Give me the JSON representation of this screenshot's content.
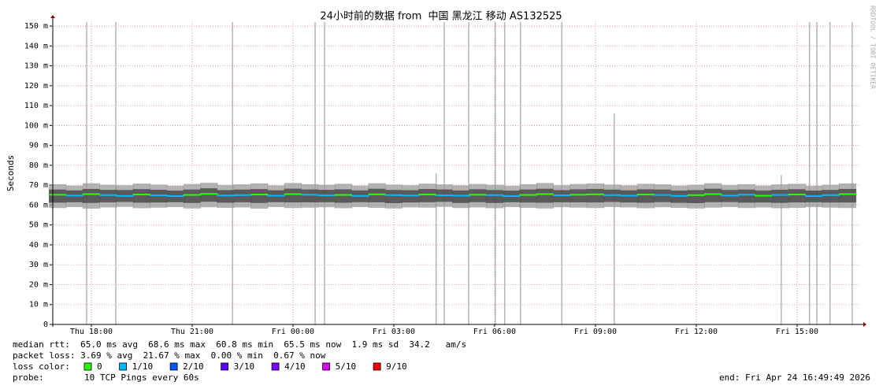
{
  "chart_data": {
    "type": "smokeping",
    "title": "24小时前的数据 from  中国 黑龙江 移动 AS132525",
    "y_label": "Seconds",
    "watermark": "RRDTOOL / TOBI OETIKER",
    "xlim": [
      16.83,
      40.83
    ],
    "xticks": [
      {
        "value": 18,
        "label": "Thu 18:00"
      },
      {
        "value": 21,
        "label": "Thu 21:00"
      },
      {
        "value": 24,
        "label": "Fri 00:00"
      },
      {
        "value": 27,
        "label": "Fri 03:00"
      },
      {
        "value": 30,
        "label": "Fri 06:00"
      },
      {
        "value": 33,
        "label": "Fri 09:00"
      },
      {
        "value": 36,
        "label": "Fri 12:00"
      },
      {
        "value": 39,
        "label": "Fri 15:00"
      }
    ],
    "ylim": [
      0,
      0.1524
    ],
    "yticks": [
      0,
      {
        "value": 0.01,
        "label": "10 m"
      },
      {
        "value": 0.02,
        "label": "20 m"
      },
      {
        "value": 0.03,
        "label": "30 m"
      },
      {
        "value": 0.04,
        "label": "40 m"
      },
      {
        "value": 0.05,
        "label": "50 m"
      },
      {
        "value": 0.06,
        "label": "60 m"
      },
      {
        "value": 0.07,
        "label": "70 m"
      },
      {
        "value": 0.08,
        "label": "80 m"
      },
      {
        "value": 0.09,
        "label": "90 m"
      },
      {
        "value": 0.1,
        "label": "100 m"
      },
      {
        "value": 0.11,
        "label": "110 m"
      },
      {
        "value": 0.12,
        "label": "120 m"
      },
      {
        "value": 0.13,
        "label": "130 m"
      },
      {
        "value": 0.14,
        "label": "140 m"
      },
      {
        "value": 0.15,
        "label": "150 m"
      }
    ],
    "grid": true,
    "x": [
      17.0,
      17.5,
      18.0,
      18.5,
      19.0,
      19.5,
      20.0,
      20.5,
      21.0,
      21.5,
      22.0,
      22.5,
      23.0,
      23.5,
      24.0,
      24.5,
      25.0,
      25.5,
      26.0,
      26.5,
      27.0,
      27.5,
      28.0,
      28.5,
      29.0,
      29.5,
      30.0,
      30.5,
      31.0,
      31.5,
      32.0,
      32.5,
      33.0,
      33.5,
      34.0,
      34.5,
      35.0,
      35.5,
      36.0,
      36.5,
      37.0,
      37.5,
      38.0,
      38.5,
      39.0,
      39.5,
      40.0,
      40.5
    ],
    "median": [
      0.0652,
      0.0648,
      0.0655,
      0.065,
      0.0646,
      0.0653,
      0.0649,
      0.0645,
      0.0651,
      0.0656,
      0.0648,
      0.065,
      0.0653,
      0.0647,
      0.0655,
      0.0652,
      0.0649,
      0.0651,
      0.0646,
      0.0654,
      0.065,
      0.0648,
      0.0653,
      0.0649,
      0.0647,
      0.0652,
      0.065,
      0.0645,
      0.0651,
      0.0655,
      0.0649,
      0.0652,
      0.0654,
      0.065,
      0.0647,
      0.0653,
      0.0651,
      0.0646,
      0.065,
      0.0655,
      0.0648,
      0.0652,
      0.0647,
      0.0651,
      0.0653,
      0.0645,
      0.065,
      0.0655
    ],
    "loss": [
      0,
      1,
      0,
      1,
      1,
      0,
      1,
      1,
      0,
      0,
      1,
      1,
      0,
      1,
      0,
      1,
      1,
      0,
      1,
      0,
      1,
      1,
      0,
      1,
      1,
      0,
      1,
      1,
      0,
      0,
      1,
      0,
      0,
      1,
      1,
      0,
      1,
      1,
      0,
      0,
      1,
      1,
      0,
      1,
      0,
      1,
      1,
      0
    ],
    "smoke_min": [
      0.0585,
      0.059,
      0.0582,
      0.0588,
      0.0591,
      0.0584,
      0.0587,
      0.059,
      0.0583,
      0.0589,
      0.0586,
      0.0588,
      0.0582,
      0.059,
      0.0585,
      0.0587,
      0.0589,
      0.0584,
      0.059,
      0.0586,
      0.0583,
      0.0588,
      0.0587,
      0.0591,
      0.0585,
      0.0588,
      0.0584,
      0.059,
      0.0586,
      0.0583,
      0.0589,
      0.0587,
      0.0585,
      0.059,
      0.0588,
      0.0584,
      0.0589,
      0.0586,
      0.0583,
      0.0587,
      0.059,
      0.0585,
      0.0588,
      0.0584,
      0.0586,
      0.059,
      0.0587,
      0.0585
    ],
    "smoke_max": [
      0.0705,
      0.0698,
      0.071,
      0.0702,
      0.07,
      0.0708,
      0.0703,
      0.0697,
      0.0706,
      0.0712,
      0.0701,
      0.0704,
      0.0709,
      0.0699,
      0.0711,
      0.0705,
      0.0702,
      0.0707,
      0.0698,
      0.071,
      0.0703,
      0.07,
      0.0708,
      0.0704,
      0.0699,
      0.0706,
      0.0702,
      0.0697,
      0.0705,
      0.0711,
      0.07,
      0.0706,
      0.0709,
      0.0703,
      0.0699,
      0.0707,
      0.0704,
      0.0698,
      0.0702,
      0.071,
      0.0701,
      0.0705,
      0.0698,
      0.0704,
      0.0707,
      0.0697,
      0.0702,
      0.0709
    ],
    "outliers": {
      "x": [
        17.86,
        18.73,
        22.2,
        24.66,
        24.94,
        28.26,
        28.5,
        29.23,
        30.02,
        30.3,
        30.77,
        32.0,
        33.56,
        38.53,
        39.37,
        39.59,
        39.98,
        40.64
      ],
      "values": [
        0.152,
        0.152,
        0.152,
        0.152,
        0.152,
        0.076,
        0.152,
        0.152,
        0.152,
        0.152,
        0.152,
        0.152,
        0.106,
        0.075,
        0.152,
        0.152,
        0.152,
        0.152
      ]
    },
    "stats": [
      "median rtt:  65.0 ms avg  68.6 ms max  60.8 ms min  65.5 ms now  1.9 ms sd  34.2   am/s",
      "packet loss: 3.69 % avg  21.67 % max  0.00 % min  0.67 % now"
    ],
    "legend_label": "loss color:",
    "legend": [
      {
        "name": "0",
        "color": "#26ff00"
      },
      {
        "name": "1/10",
        "color": "#00b8ff"
      },
      {
        "name": "2/10",
        "color": "#0059ff"
      },
      {
        "name": "3/10",
        "color": "#5e00ff"
      },
      {
        "name": "4/10",
        "color": "#7e00ff"
      },
      {
        "name": "5/10",
        "color": "#dd00ff"
      },
      {
        "name": "9/10",
        "color": "#ff0000"
      }
    ],
    "probe_label": "probe:",
    "probe": "10 TCP Pings every 60s",
    "end": "end: Fri Apr 24 16:49:49 2026"
  }
}
